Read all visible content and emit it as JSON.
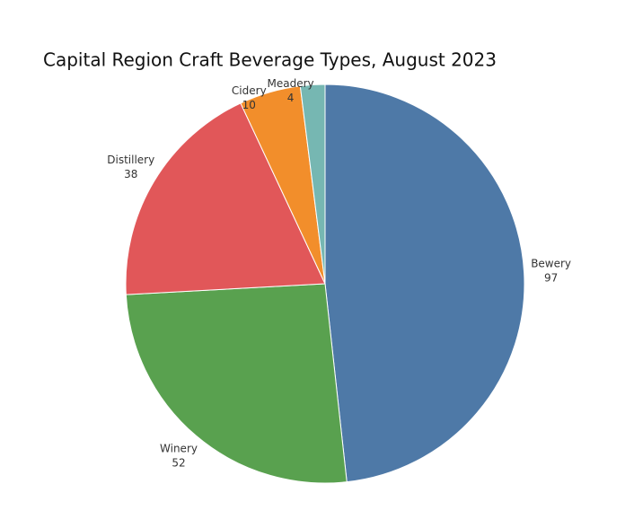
{
  "chart_data": {
    "type": "pie",
    "title": "Capital Region Craft Beverage Types, August 2023",
    "categories": [
      "Bewery",
      "Winery",
      "Distillery",
      "Cidery",
      "Meadery"
    ],
    "values": [
      97,
      52,
      38,
      10,
      4
    ],
    "colors": [
      "#4e79a7",
      "#59a14f",
      "#e15759",
      "#f28e2b",
      "#76b7b2"
    ]
  }
}
